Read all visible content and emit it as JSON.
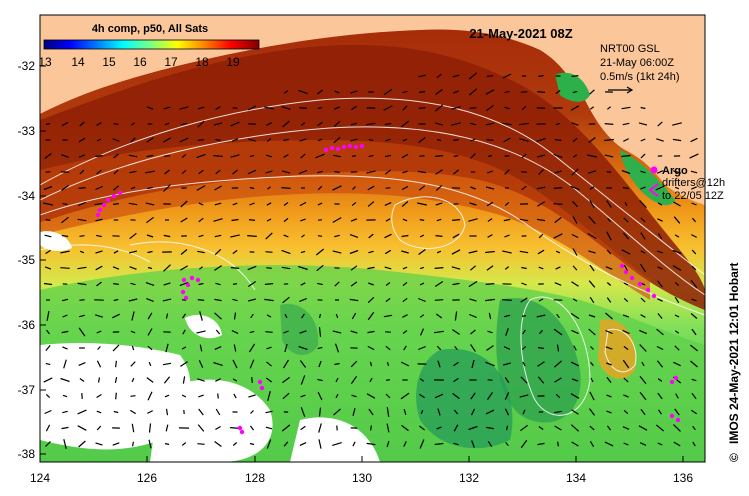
{
  "colorbar": {
    "title": "4h comp, p50, All Sats",
    "ticks": [
      "13",
      "14",
      "15",
      "16",
      "17",
      "18",
      "19"
    ],
    "colors": [
      "#00007f",
      "#0000ff",
      "#007fff",
      "#00ffff",
      "#7fff7f",
      "#ffff00",
      "#ff7f00",
      "#ff0000",
      "#7f0000"
    ]
  },
  "header": {
    "timestamp": "21-May-2021 08Z"
  },
  "velocity_legend": {
    "line1": "NRT00 GSL",
    "line2": "21-May 06:00Z",
    "line3": "0.5m/s (1kt 24h)"
  },
  "argo_legend": {
    "argo_label": "Argo",
    "drifter_line1": "drifters@12h",
    "drifter_line2": "to 22/05 12Z",
    "marker_color": "#ff00ff"
  },
  "side_label": "IMOS 24-May-2021 12:01 Hobart",
  "copyright_symbol": "©",
  "axes": {
    "y_ticks": [
      "-32",
      "-33",
      "-34",
      "-35",
      "-36",
      "-37",
      "-38"
    ],
    "x_ticks": [
      "124",
      "126",
      "128",
      "130",
      "132",
      "134",
      "136"
    ]
  },
  "colors": {
    "land": "#fbc79a",
    "no_data": "#ffffff",
    "argo": "#ff00ff"
  }
}
